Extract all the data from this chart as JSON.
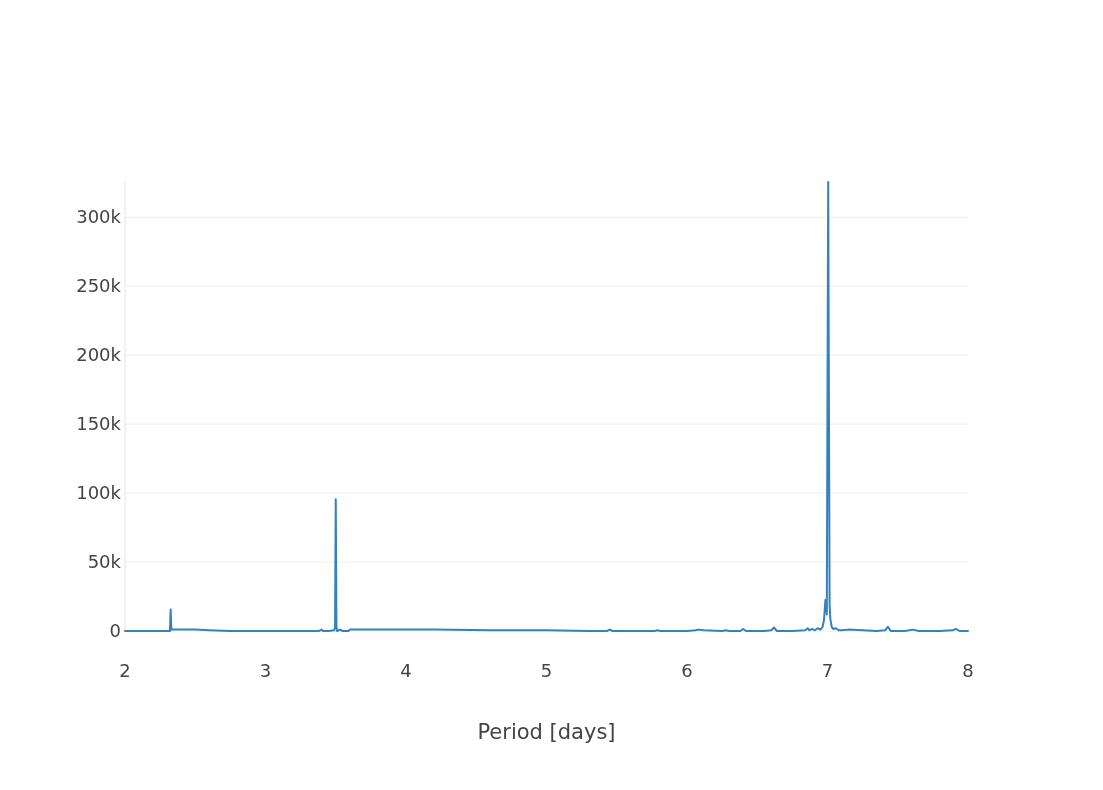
{
  "chart_data": {
    "type": "line",
    "xlabel": "Period [days]",
    "x": [
      2.0,
      2.1,
      2.2,
      2.3,
      2.32,
      2.325,
      2.33,
      2.4,
      2.5,
      2.6,
      2.75,
      2.9,
      3.0,
      3.1,
      3.2,
      3.3,
      3.38,
      3.4,
      3.41,
      3.45,
      3.49,
      3.495,
      3.5,
      3.505,
      3.51,
      3.53,
      3.55,
      3.59,
      3.6,
      3.7,
      3.9,
      4.2,
      4.6,
      5.0,
      5.3,
      5.43,
      5.45,
      5.47,
      5.6,
      5.77,
      5.79,
      5.81,
      6.0,
      6.06,
      6.08,
      6.12,
      6.25,
      6.275,
      6.3,
      6.38,
      6.4,
      6.42,
      6.55,
      6.6,
      6.62,
      6.64,
      6.75,
      6.84,
      6.86,
      6.87,
      6.89,
      6.91,
      6.93,
      6.95,
      6.965,
      6.975,
      6.985,
      6.995,
      7.005,
      7.015,
      7.02,
      7.03,
      7.04,
      7.06,
      7.08,
      7.1,
      7.15,
      7.25,
      7.35,
      7.41,
      7.43,
      7.45,
      7.55,
      7.61,
      7.65,
      7.8,
      7.89,
      7.915,
      7.94,
      8.0
    ],
    "series": [
      {
        "color": "#3182bd",
        "values": [
          0,
          0,
          0,
          0,
          0,
          15500,
          1000,
          1000,
          1000,
          500,
          0,
          0,
          0,
          0,
          0,
          0,
          0,
          1000,
          0,
          0,
          500,
          3000,
          95500,
          3000,
          0,
          1000,
          0,
          0,
          1000,
          1000,
          1000,
          1000,
          500,
          500,
          0,
          0,
          1000,
          0,
          0,
          0,
          500,
          0,
          0,
          500,
          1000,
          500,
          0,
          500,
          0,
          0,
          1500,
          0,
          0,
          500,
          2500,
          0,
          0,
          500,
          2000,
          500,
          1500,
          500,
          2000,
          1000,
          3000,
          8000,
          22500,
          12000,
          325500,
          18000,
          9000,
          3000,
          1500,
          2000,
          500,
          500,
          1000,
          500,
          0,
          500,
          3000,
          0,
          0,
          1000,
          0,
          0,
          500,
          1500,
          0,
          0
        ]
      }
    ],
    "xlim": [
      2,
      8
    ],
    "ylim": [
      0,
      325500
    ],
    "xticks": [
      2,
      3,
      4,
      5,
      6,
      7,
      8
    ],
    "yticks": [
      0,
      {
        "value": 50000,
        "label": "50k"
      },
      {
        "value": 100000,
        "label": "100k"
      },
      {
        "value": 150000,
        "label": "150k"
      },
      {
        "value": 200000,
        "label": "200k"
      },
      {
        "value": 250000,
        "label": "250k"
      },
      {
        "value": 300000,
        "label": "300k"
      }
    ],
    "grid": "y"
  }
}
